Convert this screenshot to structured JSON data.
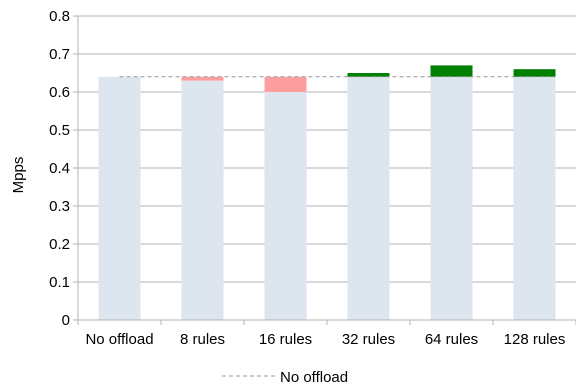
{
  "chart_data": {
    "type": "bar",
    "categories": [
      "No offload",
      "8 rules",
      "16 rules",
      "32 rules",
      "64 rules",
      "128 rules"
    ],
    "base_values": [
      0.64,
      0.63,
      0.6,
      0.64,
      0.64,
      0.64
    ],
    "values": [
      0.64,
      0.64,
      0.64,
      0.65,
      0.67,
      0.66
    ],
    "delta_segments": [
      {
        "category": "8 rules",
        "from": 0.63,
        "to": 0.64,
        "kind": "decrease"
      },
      {
        "category": "16 rules",
        "from": 0.6,
        "to": 0.64,
        "kind": "decrease"
      },
      {
        "category": "32 rules",
        "from": 0.64,
        "to": 0.65,
        "kind": "increase"
      },
      {
        "category": "64 rules",
        "from": 0.64,
        "to": 0.67,
        "kind": "increase"
      },
      {
        "category": "128 rules",
        "from": 0.64,
        "to": 0.66,
        "kind": "increase"
      }
    ],
    "reference_line": {
      "name": "No offload",
      "value": 0.64
    },
    "ylabel": "Mpps",
    "xlabel": "",
    "ylim": [
      0,
      0.8
    ],
    "yticks": [
      "0",
      "0.1",
      "0.2",
      "0.3",
      "0.4",
      "0.5",
      "0.6",
      "0.7",
      "0.8"
    ],
    "grid": true,
    "legend_position": "bottom-center",
    "colors": {
      "base": "#dde6ef",
      "decrease": "#ff9e9e",
      "increase": "#008000",
      "reference": "#999999",
      "grid": "#b3b3b3"
    }
  }
}
